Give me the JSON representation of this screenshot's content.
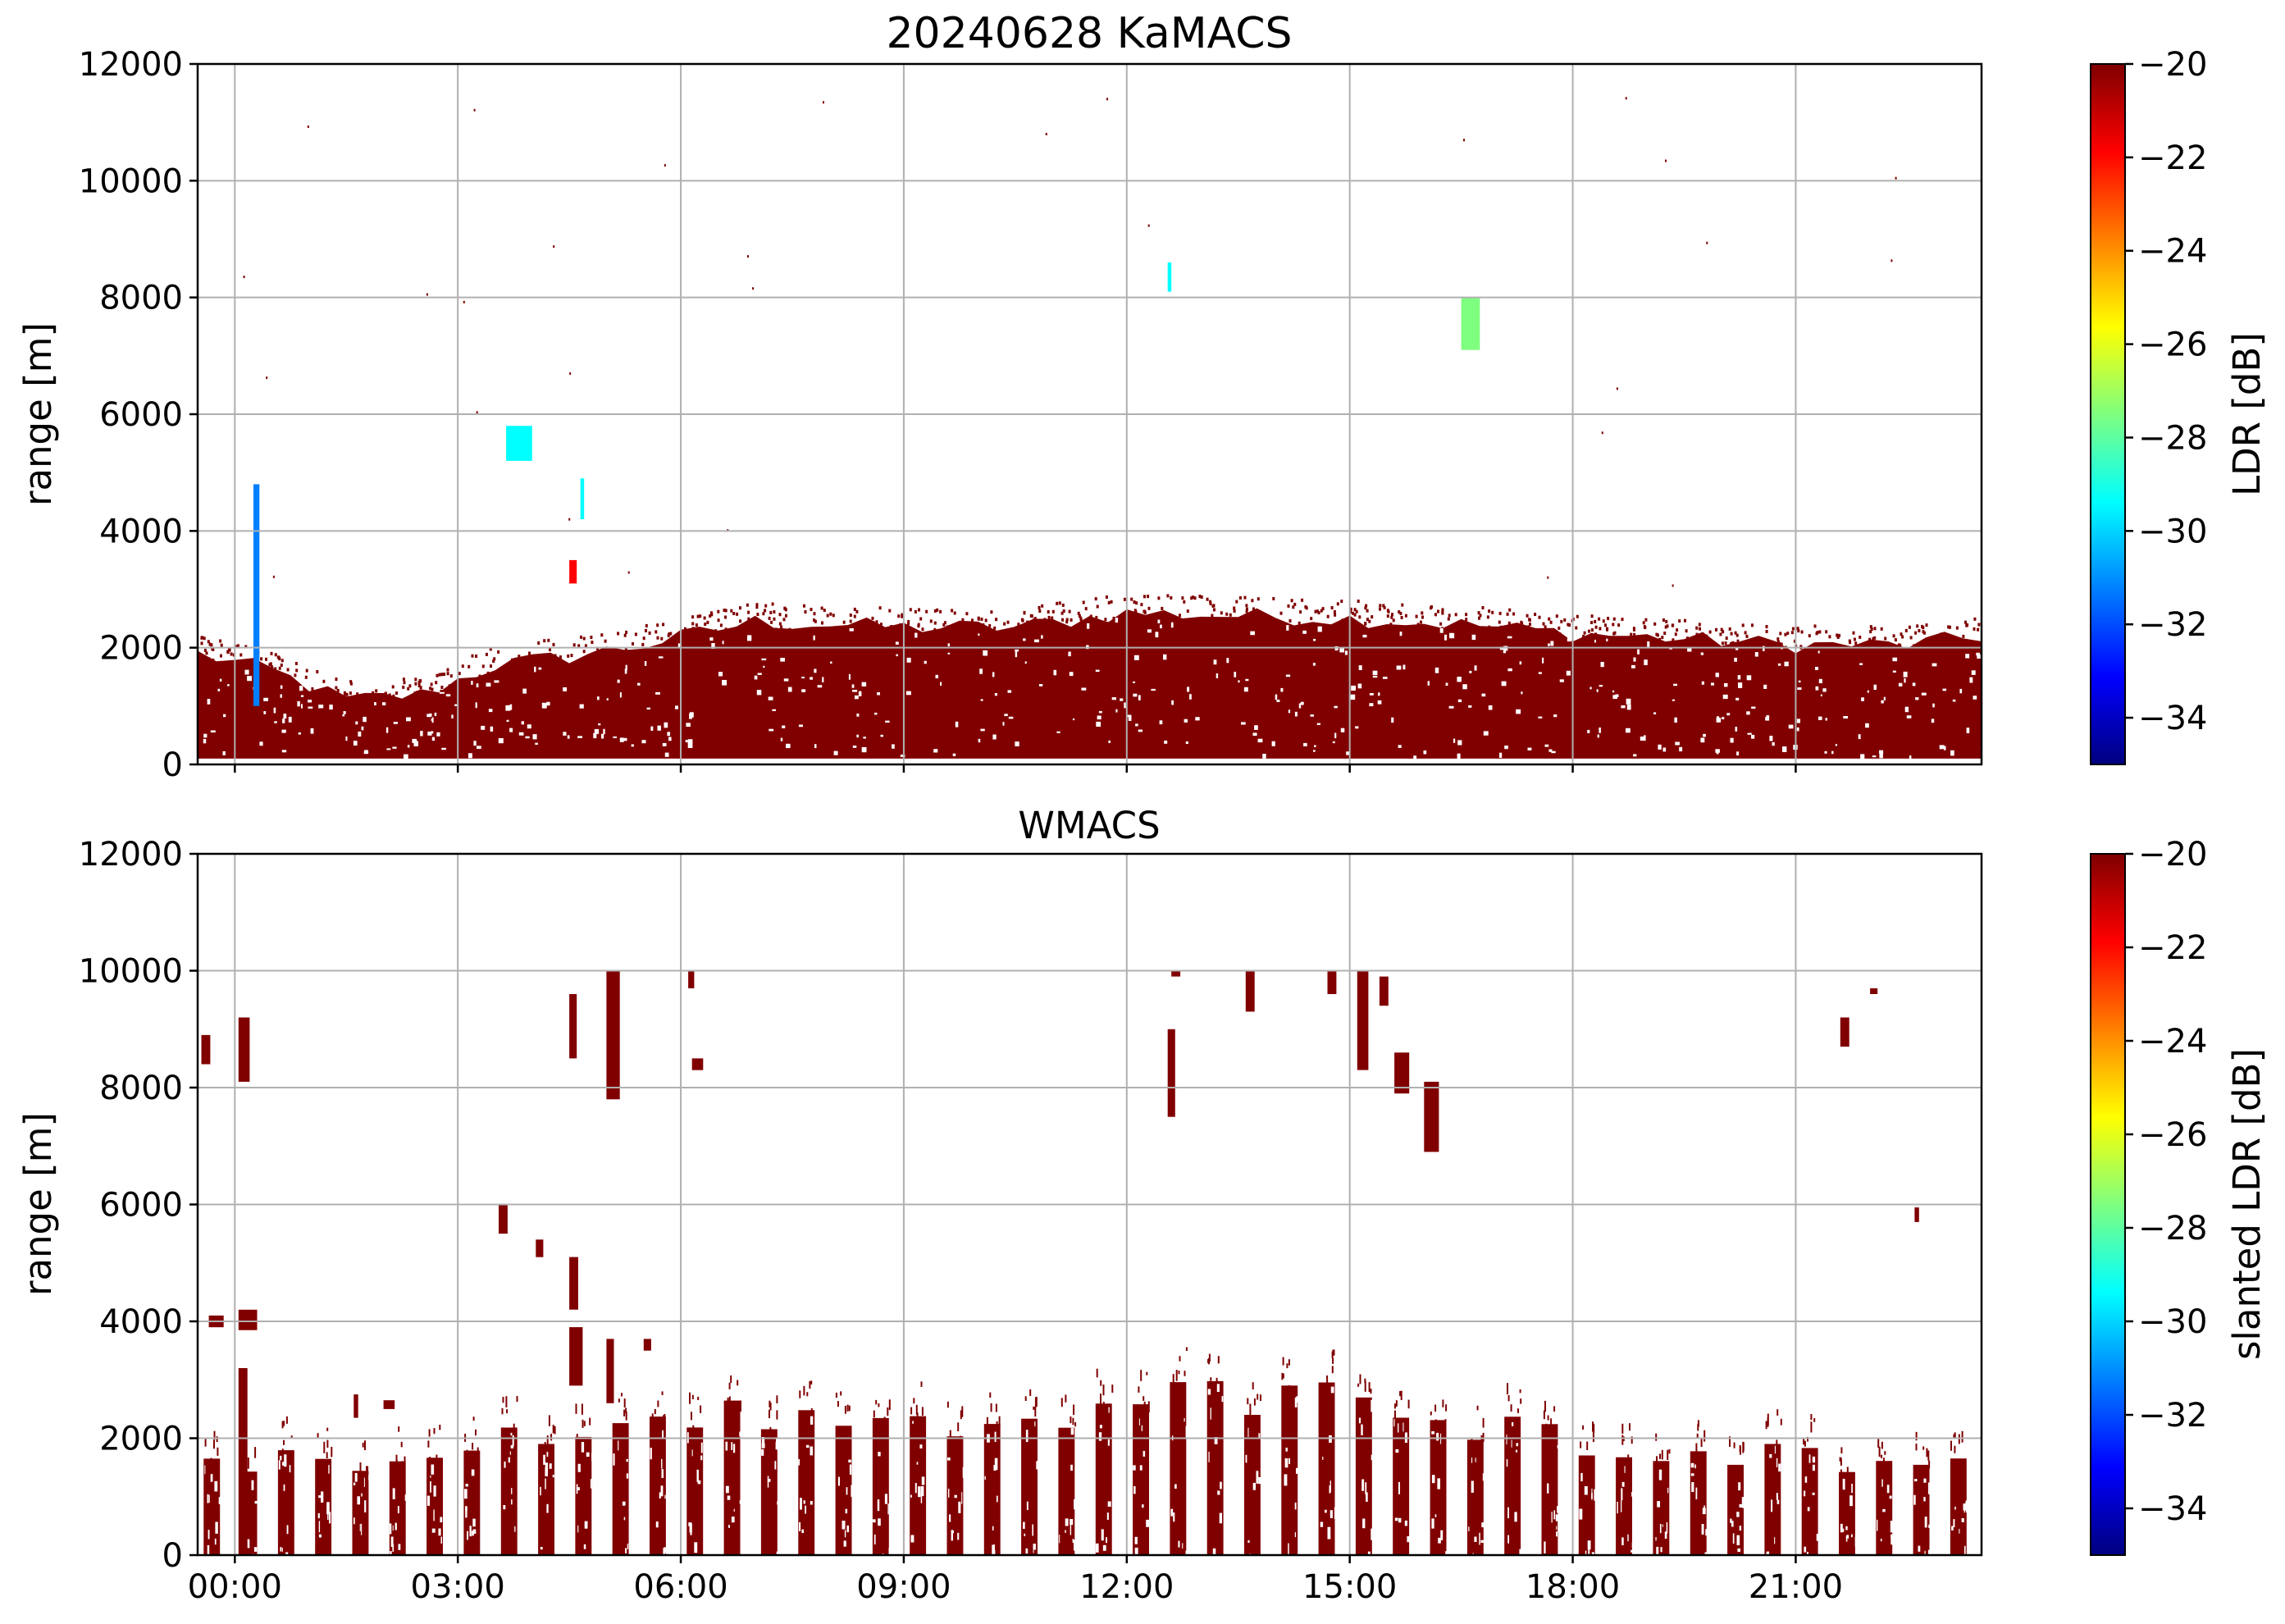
{
  "colors": {
    "jet": [
      "#00007f",
      "#0000ff",
      "#007fff",
      "#00ffff",
      "#7fff7f",
      "#ffff00",
      "#ff7f00",
      "#ff0000",
      "#7f0000"
    ],
    "bulk": "#800000",
    "grid": "#b0b0b0"
  },
  "chart_data": [
    {
      "type": "heatmap",
      "title": "20240628 KaMACS",
      "xlabel": "",
      "ylabel": "range [m]",
      "colorbar_label": "LDR [dB]",
      "clim": [
        -35,
        -20
      ],
      "colorbar_ticks": [
        "−20",
        "−22",
        "−24",
        "−26",
        "−28",
        "−30",
        "−32",
        "−34"
      ],
      "xlim_hours": [
        -0.5,
        23.5
      ],
      "ylim": [
        0,
        12000
      ],
      "yticks": [
        "0",
        "2000",
        "4000",
        "6000",
        "8000",
        "10000",
        "12000"
      ],
      "grid": true,
      "tops_profile": [
        [
          -0.5,
          1900
        ],
        [
          0.5,
          1600
        ],
        [
          1.5,
          1100
        ],
        [
          2.5,
          1200
        ],
        [
          3.5,
          1700
        ],
        [
          4.5,
          1850
        ],
        [
          5.5,
          2050
        ],
        [
          7,
          2450
        ],
        [
          9,
          2350
        ],
        [
          10.5,
          2350
        ],
        [
          12,
          2600
        ],
        [
          13.5,
          2550
        ],
        [
          15,
          2500
        ],
        [
          16.5,
          2400
        ],
        [
          18,
          2250
        ],
        [
          19.5,
          2150
        ],
        [
          21,
          2050
        ],
        [
          22.5,
          2050
        ],
        [
          23.5,
          2200
        ]
      ],
      "features": [
        {
          "t": 0.25,
          "dt": 0.08,
          "z0": 1000,
          "z1": 4800,
          "v": -31
        },
        {
          "t": 3.65,
          "dt": 0.35,
          "z0": 5200,
          "z1": 5800,
          "v": -30
        },
        {
          "t": 4.5,
          "dt": 0.1,
          "z0": 3100,
          "z1": 3500,
          "v": -21
        },
        {
          "t": 4.65,
          "dt": 0.05,
          "z0": 4200,
          "z1": 4900,
          "v": -29
        },
        {
          "t": 12.55,
          "dt": 0.05,
          "z0": 8100,
          "z1": 8600,
          "v": -30
        },
        {
          "t": 16.5,
          "dt": 0.25,
          "z0": 7100,
          "z1": 8000,
          "v": -28
        }
      ]
    },
    {
      "type": "heatmap",
      "title": "WMACS",
      "xlabel": "",
      "ylabel": "range [m]",
      "colorbar_label": "slanted LDR [dB]",
      "clim": [
        -35,
        -20
      ],
      "colorbar_ticks": [
        "−20",
        "−22",
        "−24",
        "−26",
        "−28",
        "−30",
        "−32",
        "−34"
      ],
      "xlim_hours": [
        -0.5,
        23.5
      ],
      "ylim": [
        0,
        12000
      ],
      "yticks": [
        "0",
        "2000",
        "4000",
        "6000",
        "8000",
        "10000",
        "12000"
      ],
      "xticks": [
        "00:00",
        "03:00",
        "06:00",
        "09:00",
        "12:00",
        "15:00",
        "18:00",
        "21:00"
      ],
      "grid": true,
      "stripes": {
        "start": -0.42,
        "period": 0.5,
        "width": 0.22,
        "end": 23.3
      },
      "stripe_tops": [
        [
          -0.5,
          1500
        ],
        [
          0.5,
          1800
        ],
        [
          1.5,
          1300
        ],
        [
          2.5,
          1500
        ],
        [
          3.5,
          1900
        ],
        [
          5,
          2000
        ],
        [
          7,
          2400
        ],
        [
          9,
          2100
        ],
        [
          10.5,
          2200
        ],
        [
          12,
          2600
        ],
        [
          13.5,
          2600
        ],
        [
          15,
          2600
        ],
        [
          16.5,
          2200
        ],
        [
          18,
          1900
        ],
        [
          19.5,
          1800
        ],
        [
          21,
          1700
        ],
        [
          22.5,
          1600
        ],
        [
          23.5,
          1600
        ]
      ],
      "features": [
        {
          "t": -0.45,
          "dt": 0.12,
          "z0": 8400,
          "z1": 8900
        },
        {
          "t": 0.05,
          "dt": 0.15,
          "z0": 8100,
          "z1": 9200
        },
        {
          "t": -0.35,
          "dt": 0.2,
          "z0": 3900,
          "z1": 4100
        },
        {
          "t": 0.05,
          "dt": 0.25,
          "z0": 3850,
          "z1": 4200
        },
        {
          "t": 0.05,
          "dt": 0.12,
          "z0": 0,
          "z1": 3200
        },
        {
          "t": 1.6,
          "dt": 0.06,
          "z0": 2350,
          "z1": 2750
        },
        {
          "t": 2.0,
          "dt": 0.15,
          "z0": 2500,
          "z1": 2650
        },
        {
          "t": 3.55,
          "dt": 0.12,
          "z0": 5500,
          "z1": 6000
        },
        {
          "t": 4.05,
          "dt": 0.1,
          "z0": 5100,
          "z1": 5400
        },
        {
          "t": 4.5,
          "dt": 0.12,
          "z0": 4200,
          "z1": 5100
        },
        {
          "t": 4.5,
          "dt": 0.18,
          "z0": 2900,
          "z1": 3900
        },
        {
          "t": 4.5,
          "dt": 0.1,
          "z0": 8500,
          "z1": 9600
        },
        {
          "t": 5.0,
          "dt": 0.18,
          "z0": 7800,
          "z1": 10000
        },
        {
          "t": 5.0,
          "dt": 0.1,
          "z0": 2600,
          "z1": 3700
        },
        {
          "t": 5.5,
          "dt": 0.1,
          "z0": 3500,
          "z1": 3700
        },
        {
          "t": 6.15,
          "dt": 0.15,
          "z0": 8300,
          "z1": 8500
        },
        {
          "t": 6.1,
          "dt": 0.08,
          "z0": 9700,
          "z1": 10000
        },
        {
          "t": 12.55,
          "dt": 0.1,
          "z0": 7500,
          "z1": 9000
        },
        {
          "t": 12.6,
          "dt": 0.12,
          "z0": 9900,
          "z1": 10000
        },
        {
          "t": 13.6,
          "dt": 0.12,
          "z0": 9300,
          "z1": 10000
        },
        {
          "t": 14.7,
          "dt": 0.12,
          "z0": 9600,
          "z1": 10000
        },
        {
          "t": 15.1,
          "dt": 0.15,
          "z0": 8300,
          "z1": 10000
        },
        {
          "t": 15.4,
          "dt": 0.12,
          "z0": 9400,
          "z1": 9900
        },
        {
          "t": 15.6,
          "dt": 0.2,
          "z0": 7900,
          "z1": 8600
        },
        {
          "t": 16.0,
          "dt": 0.2,
          "z0": 6900,
          "z1": 8100
        },
        {
          "t": 21.6,
          "dt": 0.12,
          "z0": 8700,
          "z1": 9200
        },
        {
          "t": 22.0,
          "dt": 0.1,
          "z0": 9600,
          "z1": 9700
        },
        {
          "t": 22.6,
          "dt": 0.06,
          "z0": 5700,
          "z1": 5950
        }
      ]
    }
  ]
}
